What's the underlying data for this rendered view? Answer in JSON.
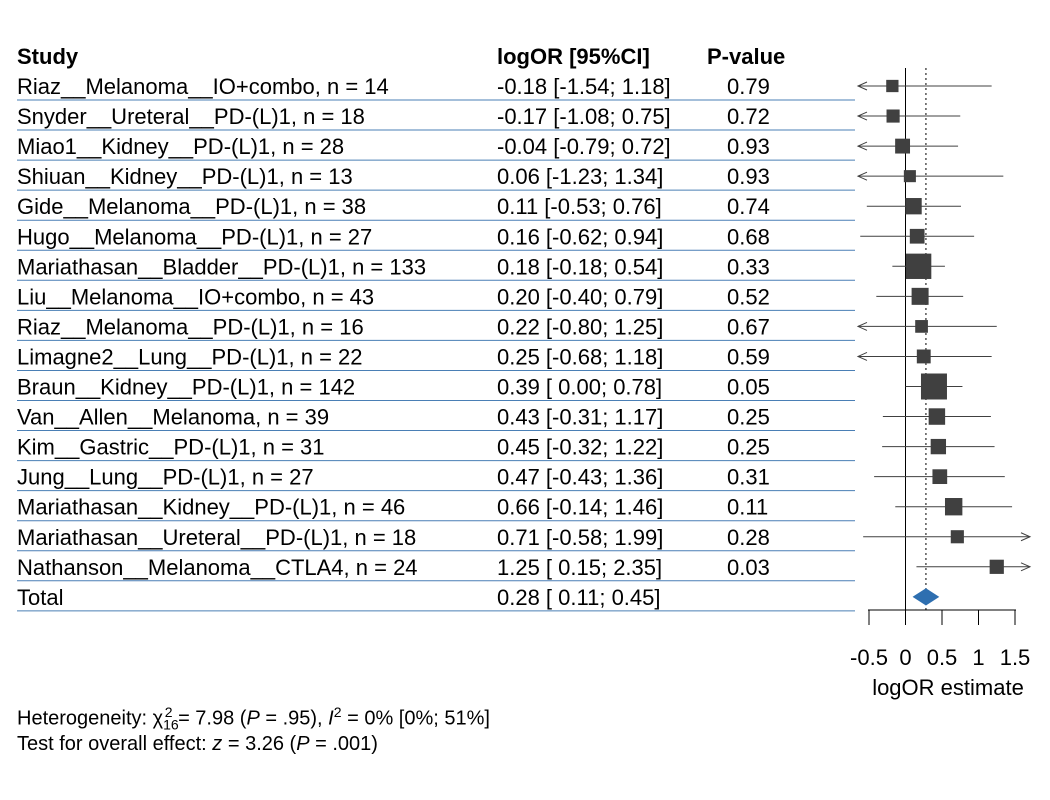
{
  "chart_data": {
    "type": "forest",
    "headers": {
      "study": "Study",
      "estimate": "logOR [95%CI]",
      "pvalue": "P-value"
    },
    "studies": [
      {
        "label": "Riaz__Melanoma__IO+combo, n = 14",
        "estimate_text": "-0.18 [-1.54; 1.18]",
        "p_text": "0.79",
        "logor": -0.18,
        "lower": -1.54,
        "upper": 1.18,
        "weight": 14
      },
      {
        "label": "Snyder__Ureteral__PD-(L)1, n = 18",
        "estimate_text": "-0.17 [-1.08; 0.75]",
        "p_text": "0.72",
        "logor": -0.17,
        "lower": -1.08,
        "upper": 0.75,
        "weight": 18
      },
      {
        "label": "Miao1__Kidney__PD-(L)1, n = 28",
        "estimate_text": "-0.04 [-0.79; 0.72]",
        "p_text": "0.93",
        "logor": -0.04,
        "lower": -0.79,
        "upper": 0.72,
        "weight": 28
      },
      {
        "label": "Shiuan__Kidney__PD-(L)1, n = 13",
        "estimate_text": "0.06 [-1.23; 1.34]",
        "p_text": "0.93",
        "logor": 0.06,
        "lower": -1.23,
        "upper": 1.34,
        "weight": 13
      },
      {
        "label": "Gide__Melanoma__PD-(L)1, n = 38",
        "estimate_text": "0.11 [-0.53; 0.76]",
        "p_text": "0.74",
        "logor": 0.11,
        "lower": -0.53,
        "upper": 0.76,
        "weight": 38
      },
      {
        "label": "Hugo__Melanoma__PD-(L)1, n = 27",
        "estimate_text": "0.16 [-0.62; 0.94]",
        "p_text": "0.68",
        "logor": 0.16,
        "lower": -0.62,
        "upper": 0.94,
        "weight": 27
      },
      {
        "label": "Mariathasan__Bladder__PD-(L)1, n = 133",
        "estimate_text": "0.18 [-0.18; 0.54]",
        "p_text": "0.33",
        "logor": 0.18,
        "lower": -0.18,
        "upper": 0.54,
        "weight": 133
      },
      {
        "label": "Liu__Melanoma__IO+combo, n = 43",
        "estimate_text": "0.20 [-0.40; 0.79]",
        "p_text": "0.52",
        "logor": 0.2,
        "lower": -0.4,
        "upper": 0.79,
        "weight": 43
      },
      {
        "label": "Riaz__Melanoma__PD-(L)1, n = 16",
        "estimate_text": "0.22 [-0.80; 1.25]",
        "p_text": "0.67",
        "logor": 0.22,
        "lower": -0.8,
        "upper": 1.25,
        "weight": 16
      },
      {
        "label": "Limagne2__Lung__PD-(L)1, n = 22",
        "estimate_text": "0.25 [-0.68; 1.18]",
        "p_text": "0.59",
        "logor": 0.25,
        "lower": -0.68,
        "upper": 1.18,
        "weight": 22
      },
      {
        "label": "Braun__Kidney__PD-(L)1, n = 142",
        "estimate_text": "0.39 [ 0.00; 0.78]",
        "p_text": "0.05",
        "logor": 0.39,
        "lower": 0.0,
        "upper": 0.78,
        "weight": 142
      },
      {
        "label": "Van__Allen__Melanoma, n = 39",
        "estimate_text": "0.43 [-0.31; 1.17]",
        "p_text": "0.25",
        "logor": 0.43,
        "lower": -0.31,
        "upper": 1.17,
        "weight": 39
      },
      {
        "label": "Kim__Gastric__PD-(L)1, n = 31",
        "estimate_text": "0.45 [-0.32; 1.22]",
        "p_text": "0.25",
        "logor": 0.45,
        "lower": -0.32,
        "upper": 1.22,
        "weight": 31
      },
      {
        "label": "Jung__Lung__PD-(L)1, n = 27",
        "estimate_text": "0.47 [-0.43; 1.36]",
        "p_text": "0.31",
        "logor": 0.47,
        "lower": -0.43,
        "upper": 1.36,
        "weight": 27
      },
      {
        "label": "Mariathasan__Kidney__PD-(L)1, n = 46",
        "estimate_text": "0.66 [-0.14; 1.46]",
        "p_text": "0.11",
        "logor": 0.66,
        "lower": -0.14,
        "upper": 1.46,
        "weight": 46
      },
      {
        "label": "Mariathasan__Ureteral__PD-(L)1, n = 18",
        "estimate_text": "0.71 [-0.58; 1.99]",
        "p_text": "0.28",
        "logor": 0.71,
        "lower": -0.58,
        "upper": 1.99,
        "weight": 18
      },
      {
        "label": "Nathanson__Melanoma__CTLA4, n = 24",
        "estimate_text": "1.25 [ 0.15; 2.35]",
        "p_text": "0.03",
        "logor": 1.25,
        "lower": 0.15,
        "upper": 2.35,
        "weight": 24
      }
    ],
    "total": {
      "label": "Total",
      "estimate_text": "0.28 [ 0.11; 0.45]",
      "logor": 0.28,
      "lower": 0.11,
      "upper": 0.45
    },
    "xaxis": {
      "label": "logOR estimate",
      "ticks": [
        -0.5,
        0,
        0.5,
        1,
        1.5
      ],
      "tick_labels": [
        "-0.5",
        "0",
        "0.5",
        "1",
        "1.5"
      ],
      "xlim": [
        -0.5,
        1.5
      ]
    },
    "reference_line": 0,
    "pooled_line": 0.28,
    "colors": {
      "row_line": "#4a7fb5",
      "marker": "#404040",
      "diamond": "#2e6fb0",
      "ci": "#404040"
    }
  },
  "footer": {
    "heterogeneity": {
      "prefix": "Heterogeneity: ",
      "chi_symbol": "χ",
      "chi_sub": "16",
      "chi_sup": "2",
      "chi_value": " = 7.98 (",
      "p_letter": "P",
      "p_value": " = .95), ",
      "i_letter": "I",
      "i_sup": "2",
      "i_value": " = 0% [0%; 51%]"
    },
    "overall": {
      "prefix": "Test for overall effect: ",
      "z_letter": "z",
      "z_value": " = 3.26 (",
      "p_letter": "P",
      "p_value": " = .001)"
    }
  }
}
